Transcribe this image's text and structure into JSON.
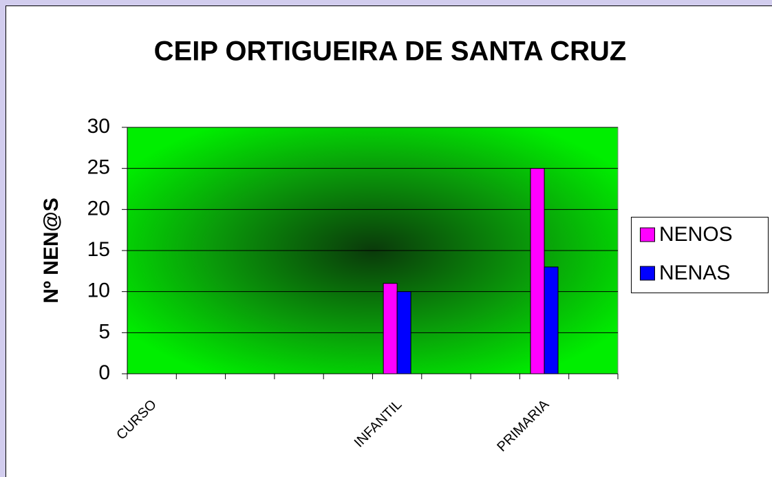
{
  "chart_data": {
    "type": "bar",
    "title": "CEIP ORTIGUEIRA DE SANTA CRUZ",
    "y_label": "Nº NEN@S",
    "categories": [
      "CURSO",
      null,
      null,
      null,
      null,
      "INFANTIL",
      null,
      null,
      "PRIMARIA",
      null
    ],
    "series": [
      {
        "name": "NENOS",
        "color": "#ff00ff",
        "values": [
          null,
          null,
          null,
          null,
          null,
          11,
          null,
          null,
          25,
          null
        ]
      },
      {
        "name": "NENAS",
        "color": "#0000ff",
        "values": [
          null,
          null,
          null,
          null,
          null,
          10,
          null,
          null,
          13,
          null
        ]
      }
    ],
    "ylim": [
      0,
      30
    ],
    "yticks": [
      0,
      5,
      10,
      15,
      20,
      25,
      30
    ],
    "grid": true,
    "legend": "right"
  }
}
